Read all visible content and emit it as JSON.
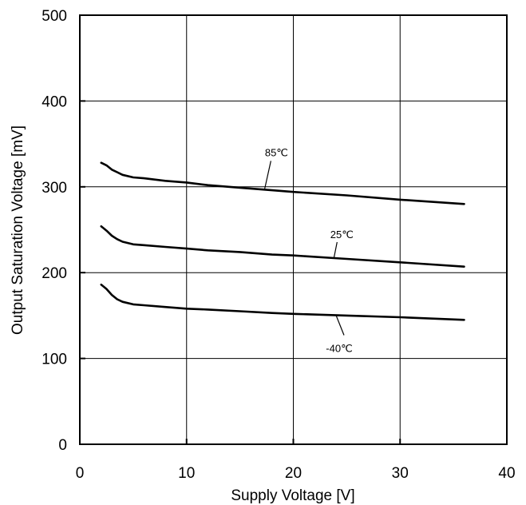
{
  "chart_data": {
    "type": "line",
    "title": "",
    "xlabel": "Supply Voltage [V]",
    "ylabel": "Output Saturation Voltage [mV]",
    "xlim": [
      0,
      40
    ],
    "ylim": [
      0,
      500
    ],
    "xticks": [
      0,
      10,
      20,
      30,
      40
    ],
    "yticks": [
      0,
      100,
      200,
      300,
      400,
      500
    ],
    "grid": true,
    "legend": "none",
    "line_color": "#000000",
    "series": [
      {
        "name": "85℃",
        "x": [
          2,
          2.5,
          3,
          3.5,
          4,
          5,
          6,
          8,
          10,
          12,
          15,
          18,
          20,
          25,
          30,
          36
        ],
        "y": [
          328,
          325,
          320,
          317,
          314,
          311,
          310,
          307,
          305,
          302,
          299,
          296,
          294,
          290,
          285,
          280
        ]
      },
      {
        "name": "25℃",
        "x": [
          2,
          2.5,
          3,
          3.5,
          4,
          5,
          6,
          8,
          10,
          12,
          15,
          18,
          20,
          25,
          30,
          36
        ],
        "y": [
          254,
          249,
          243,
          239,
          236,
          233,
          232,
          230,
          228,
          226,
          224,
          221,
          220,
          216,
          212,
          207
        ]
      },
      {
        "name": "-40℃",
        "x": [
          2,
          2.5,
          3,
          3.5,
          4,
          5,
          6,
          8,
          10,
          12,
          15,
          18,
          20,
          25,
          30,
          36
        ],
        "y": [
          186,
          181,
          174,
          169,
          166,
          163,
          162,
          160,
          158,
          157,
          155,
          153,
          152,
          150,
          148,
          145
        ]
      }
    ]
  }
}
